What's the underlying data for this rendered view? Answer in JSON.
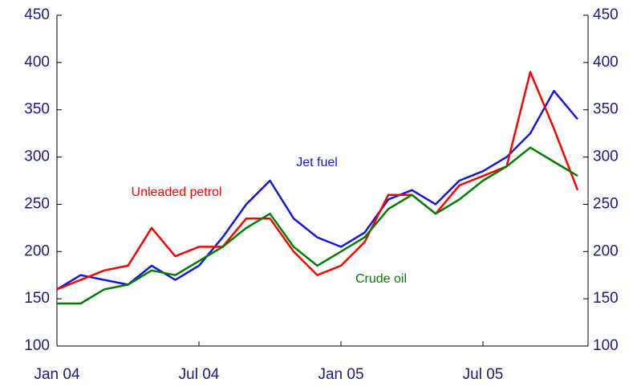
{
  "chart_data": {
    "type": "line",
    "x": [
      "Jan 04",
      "Feb 04",
      "Mar 04",
      "Apr 04",
      "May 04",
      "Jun 04",
      "Jul 04",
      "Aug 04",
      "Sep 04",
      "Oct 04",
      "Nov 04",
      "Dec 04",
      "Jan 05",
      "Feb 05",
      "Mar 05",
      "Apr 05",
      "May 05",
      "Jun 05",
      "Jul 05",
      "Aug 05",
      "Sep 05",
      "Oct 05",
      "Nov 05"
    ],
    "xticks": [
      "Jan 04",
      "Jul 04",
      "Jan 05",
      "Jul 05"
    ],
    "ylim": [
      100,
      450
    ],
    "yticks": [
      100,
      150,
      200,
      250,
      300,
      350,
      400,
      450
    ],
    "y2lim": [
      100,
      450
    ],
    "y2ticks": [
      100,
      150,
      200,
      250,
      300,
      350,
      400,
      450
    ],
    "series": [
      {
        "name": "Jet fuel",
        "color": "#1414e6",
        "values": [
          160,
          175,
          170,
          165,
          185,
          170,
          185,
          215,
          250,
          275,
          235,
          215,
          205,
          220,
          255,
          265,
          250,
          275,
          285,
          300,
          325,
          370,
          340
        ]
      },
      {
        "name": "Unleaded petrol",
        "color": "#ff0000",
        "values": [
          160,
          170,
          180,
          185,
          225,
          195,
          205,
          205,
          235,
          235,
          200,
          175,
          185,
          210,
          260,
          260,
          240,
          270,
          280,
          290,
          390,
          330,
          265
        ]
      },
      {
        "name": "Crude oil",
        "color": "#008000",
        "values": [
          145,
          145,
          160,
          165,
          180,
          175,
          190,
          205,
          225,
          240,
          205,
          185,
          200,
          215,
          245,
          260,
          240,
          255,
          275,
          290,
          310,
          295,
          280
        ]
      }
    ]
  }
}
